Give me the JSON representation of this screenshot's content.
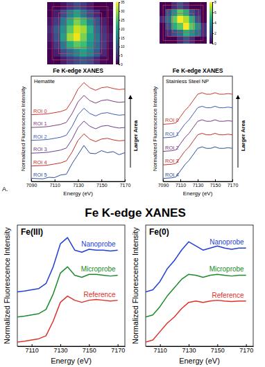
{
  "panel_label": "A.",
  "figure_title": "Fe K-edge XANES",
  "chart_data": [
    {
      "type": "heatmap",
      "cells": [
        [
          0,
          0,
          2,
          5,
          8,
          6,
          3,
          0,
          0,
          0
        ],
        [
          0,
          3,
          8,
          15,
          20,
          14,
          8,
          4,
          0,
          0
        ],
        [
          2,
          6,
          14,
          22,
          28,
          24,
          16,
          9,
          3,
          0
        ],
        [
          4,
          10,
          18,
          26,
          32,
          30,
          22,
          12,
          5,
          1
        ],
        [
          3,
          9,
          20,
          30,
          34,
          28,
          20,
          14,
          6,
          2
        ],
        [
          1,
          6,
          14,
          22,
          26,
          24,
          18,
          12,
          6,
          1
        ],
        [
          0,
          3,
          8,
          12,
          16,
          20,
          16,
          10,
          4,
          0
        ],
        [
          0,
          0,
          3,
          6,
          8,
          10,
          8,
          4,
          1,
          0
        ]
      ],
      "colorbar_range": [
        0,
        35
      ],
      "colorbar_ticks": [
        0,
        5,
        10,
        15,
        20,
        25,
        30,
        35
      ]
    },
    {
      "type": "heatmap",
      "cells": [
        [
          0,
          0,
          1,
          2,
          1,
          0,
          0,
          0
        ],
        [
          0,
          2,
          4,
          6,
          5,
          2,
          1,
          0
        ],
        [
          1,
          3,
          6,
          8,
          7,
          5,
          2,
          0
        ],
        [
          0,
          2,
          5,
          6,
          8,
          6,
          4,
          1
        ],
        [
          0,
          1,
          2,
          3,
          5,
          4,
          3,
          1
        ],
        [
          0,
          0,
          0,
          1,
          2,
          1,
          0,
          0
        ]
      ],
      "colorbar_range": [
        0,
        8
      ],
      "colorbar_ticks": [
        0,
        2,
        4,
        6,
        8
      ]
    },
    {
      "type": "line",
      "title": "Fe K-edge XANES",
      "subtitle": "Hematite",
      "annotation": "Larger Area",
      "x_label": "Energy (eV)",
      "y_label": "Normalized Fluorescence Intensity",
      "x": [
        7090,
        7100,
        7105,
        7110,
        7115,
        7120,
        7125,
        7130,
        7135,
        7140,
        7145,
        7150,
        7155,
        7160,
        7165,
        7170
      ],
      "xlim": [
        7090,
        7170
      ],
      "xticks": [
        7090,
        7110,
        7130,
        7150,
        7170
      ],
      "ylim": [
        -0.1,
        4.0
      ],
      "tick_labels": "x",
      "legend": "left",
      "series": [
        {
          "name": "ROI 0",
          "color": "#c8372d",
          "values": [
            2.5,
            2.52,
            2.54,
            2.58,
            2.62,
            2.7,
            3.05,
            3.5,
            3.75,
            3.55,
            3.45,
            3.55,
            3.58,
            3.52,
            3.48,
            3.5
          ]
        },
        {
          "name": "ROI 1",
          "color": "#7a3b7e",
          "values": [
            2.0,
            2.02,
            2.04,
            2.08,
            2.12,
            2.2,
            2.55,
            3.0,
            3.25,
            3.05,
            2.95,
            3.05,
            3.08,
            3.02,
            2.98,
            3.0
          ]
        },
        {
          "name": "ROI 2",
          "color": "#3b5bb5",
          "values": [
            1.5,
            1.52,
            1.54,
            1.58,
            1.62,
            1.7,
            2.05,
            2.5,
            2.75,
            2.55,
            2.45,
            2.55,
            2.58,
            2.52,
            2.48,
            2.5
          ]
        },
        {
          "name": "ROI 3",
          "color": "#6a3d8f",
          "values": [
            1.0,
            1.02,
            1.04,
            1.08,
            1.12,
            1.2,
            1.55,
            2.0,
            2.25,
            2.05,
            1.95,
            2.05,
            2.08,
            2.02,
            1.98,
            2.0
          ]
        },
        {
          "name": "ROI 4",
          "color": "#c0302a",
          "values": [
            0.5,
            0.52,
            0.54,
            0.58,
            0.62,
            0.7,
            1.05,
            1.5,
            1.75,
            1.55,
            1.45,
            1.55,
            1.58,
            1.52,
            1.48,
            1.5
          ]
        },
        {
          "name": "ROI 5",
          "color": "#2a4d9a",
          "values": [
            0.02,
            0.0,
            0.06,
            0.05,
            0.15,
            0.18,
            0.6,
            0.95,
            1.3,
            1.0,
            0.98,
            1.1,
            1.02,
            1.06,
            0.94,
            1.02
          ]
        }
      ]
    },
    {
      "type": "line",
      "title": "Fe K-edge XANES",
      "subtitle": "Stainless Steel NP",
      "annotation": "Larger Area",
      "x_label": "Energy (eV)",
      "y_label": "Normalized Fluorescence Intensity",
      "x": [
        7090,
        7100,
        7105,
        7110,
        7115,
        7120,
        7125,
        7130,
        7135,
        7140,
        7145,
        7150,
        7155,
        7160,
        7165,
        7170
      ],
      "xlim": [
        7090,
        7170
      ],
      "xticks": [
        7090,
        7110,
        7130,
        7150,
        7170
      ],
      "ylim": [
        -0.1,
        3.4
      ],
      "tick_labels": "x",
      "legend": "left",
      "series": [
        {
          "name": "ROI 0",
          "color": "#c8372d",
          "values": [
            1.8,
            1.82,
            1.85,
            2.05,
            2.25,
            2.4,
            2.6,
            2.8,
            2.85,
            2.8,
            2.8,
            2.85,
            2.8,
            2.8,
            2.82,
            2.8
          ]
        },
        {
          "name": "ROI 1",
          "color": "#3b5bb5",
          "values": [
            1.35,
            1.37,
            1.4,
            1.6,
            1.8,
            1.95,
            2.15,
            2.35,
            2.4,
            2.35,
            2.35,
            2.4,
            2.35,
            2.35,
            2.37,
            2.35
          ]
        },
        {
          "name": "ROI 2",
          "color": "#7a3b7e",
          "values": [
            0.9,
            0.92,
            0.95,
            1.15,
            1.35,
            1.5,
            1.7,
            1.9,
            1.95,
            1.9,
            1.9,
            1.95,
            1.9,
            1.9,
            1.92,
            1.9
          ]
        },
        {
          "name": "ROI 3",
          "color": "#c0302a",
          "values": [
            0.45,
            0.47,
            0.5,
            0.7,
            0.9,
            1.05,
            1.25,
            1.45,
            1.5,
            1.45,
            1.45,
            1.5,
            1.45,
            1.45,
            1.47,
            1.45
          ]
        },
        {
          "name": "ROI 4",
          "color": "#2a4d9a",
          "values": [
            0.0,
            0.02,
            0.05,
            0.25,
            0.45,
            0.6,
            0.8,
            1.0,
            1.05,
            1.0,
            1.0,
            1.05,
            1.0,
            1.0,
            1.02,
            1.0
          ]
        }
      ]
    },
    {
      "type": "line",
      "title": "Fe(III)",
      "x_label": "Energy (eV)",
      "y_label": "Normalized Fluorescence Intensity",
      "x": [
        7100,
        7105,
        7110,
        7115,
        7120,
        7125,
        7130,
        7135,
        7140,
        7145,
        7150,
        7155,
        7160,
        7165,
        7170
      ],
      "xlim": [
        7100,
        7175
      ],
      "xticks": [
        7110,
        7130,
        7150,
        7170
      ],
      "ylim": [
        -0.1,
        2.8
      ],
      "tick_labels": "x",
      "legend": "right",
      "series": [
        {
          "name": "Nanoprobe",
          "color": "#1f3fd6",
          "values": [
            1.2,
            1.22,
            1.25,
            1.28,
            1.4,
            1.8,
            2.35,
            2.5,
            2.2,
            2.15,
            2.22,
            2.2,
            2.2,
            2.18,
            2.2
          ]
        },
        {
          "name": "Microprobe",
          "color": "#1a8a2a",
          "values": [
            0.6,
            0.62,
            0.65,
            0.68,
            0.78,
            1.15,
            1.65,
            1.8,
            1.6,
            1.55,
            1.62,
            1.62,
            1.6,
            1.58,
            1.6
          ]
        },
        {
          "name": "Reference",
          "color": "#e0302a",
          "values": [
            0.0,
            0.02,
            0.05,
            0.08,
            0.15,
            0.5,
            0.95,
            1.1,
            1.0,
            0.95,
            1.0,
            1.02,
            1.0,
            0.98,
            1.0
          ]
        }
      ]
    },
    {
      "type": "line",
      "title": "Fe(0)",
      "x_label": "Energy (eV)",
      "y_label": "Normalized Fluorescence Intensity",
      "x": [
        7100,
        7105,
        7110,
        7115,
        7120,
        7125,
        7130,
        7135,
        7140,
        7145,
        7150,
        7155,
        7160,
        7165,
        7170
      ],
      "xlim": [
        7100,
        7175
      ],
      "xticks": [
        7110,
        7130,
        7150,
        7170
      ],
      "ylim": [
        -0.1,
        2.8
      ],
      "tick_labels": "x",
      "legend": "right",
      "series": [
        {
          "name": "Nanoprobe",
          "color": "#1f3fd6",
          "values": [
            1.2,
            1.25,
            1.45,
            1.75,
            1.95,
            2.2,
            2.4,
            2.3,
            2.2,
            2.25,
            2.3,
            2.25,
            2.22,
            2.25,
            2.25
          ]
        },
        {
          "name": "Microprobe",
          "color": "#1a8a2a",
          "values": [
            0.6,
            0.65,
            0.85,
            1.1,
            1.3,
            1.5,
            1.62,
            1.6,
            1.55,
            1.6,
            1.62,
            1.6,
            1.58,
            1.6,
            1.6
          ]
        },
        {
          "name": "Reference",
          "color": "#e0302a",
          "values": [
            0.0,
            0.05,
            0.25,
            0.45,
            0.6,
            0.8,
            0.95,
            0.98,
            0.95,
            0.98,
            1.0,
            0.98,
            0.97,
            0.98,
            0.98
          ]
        }
      ]
    }
  ]
}
